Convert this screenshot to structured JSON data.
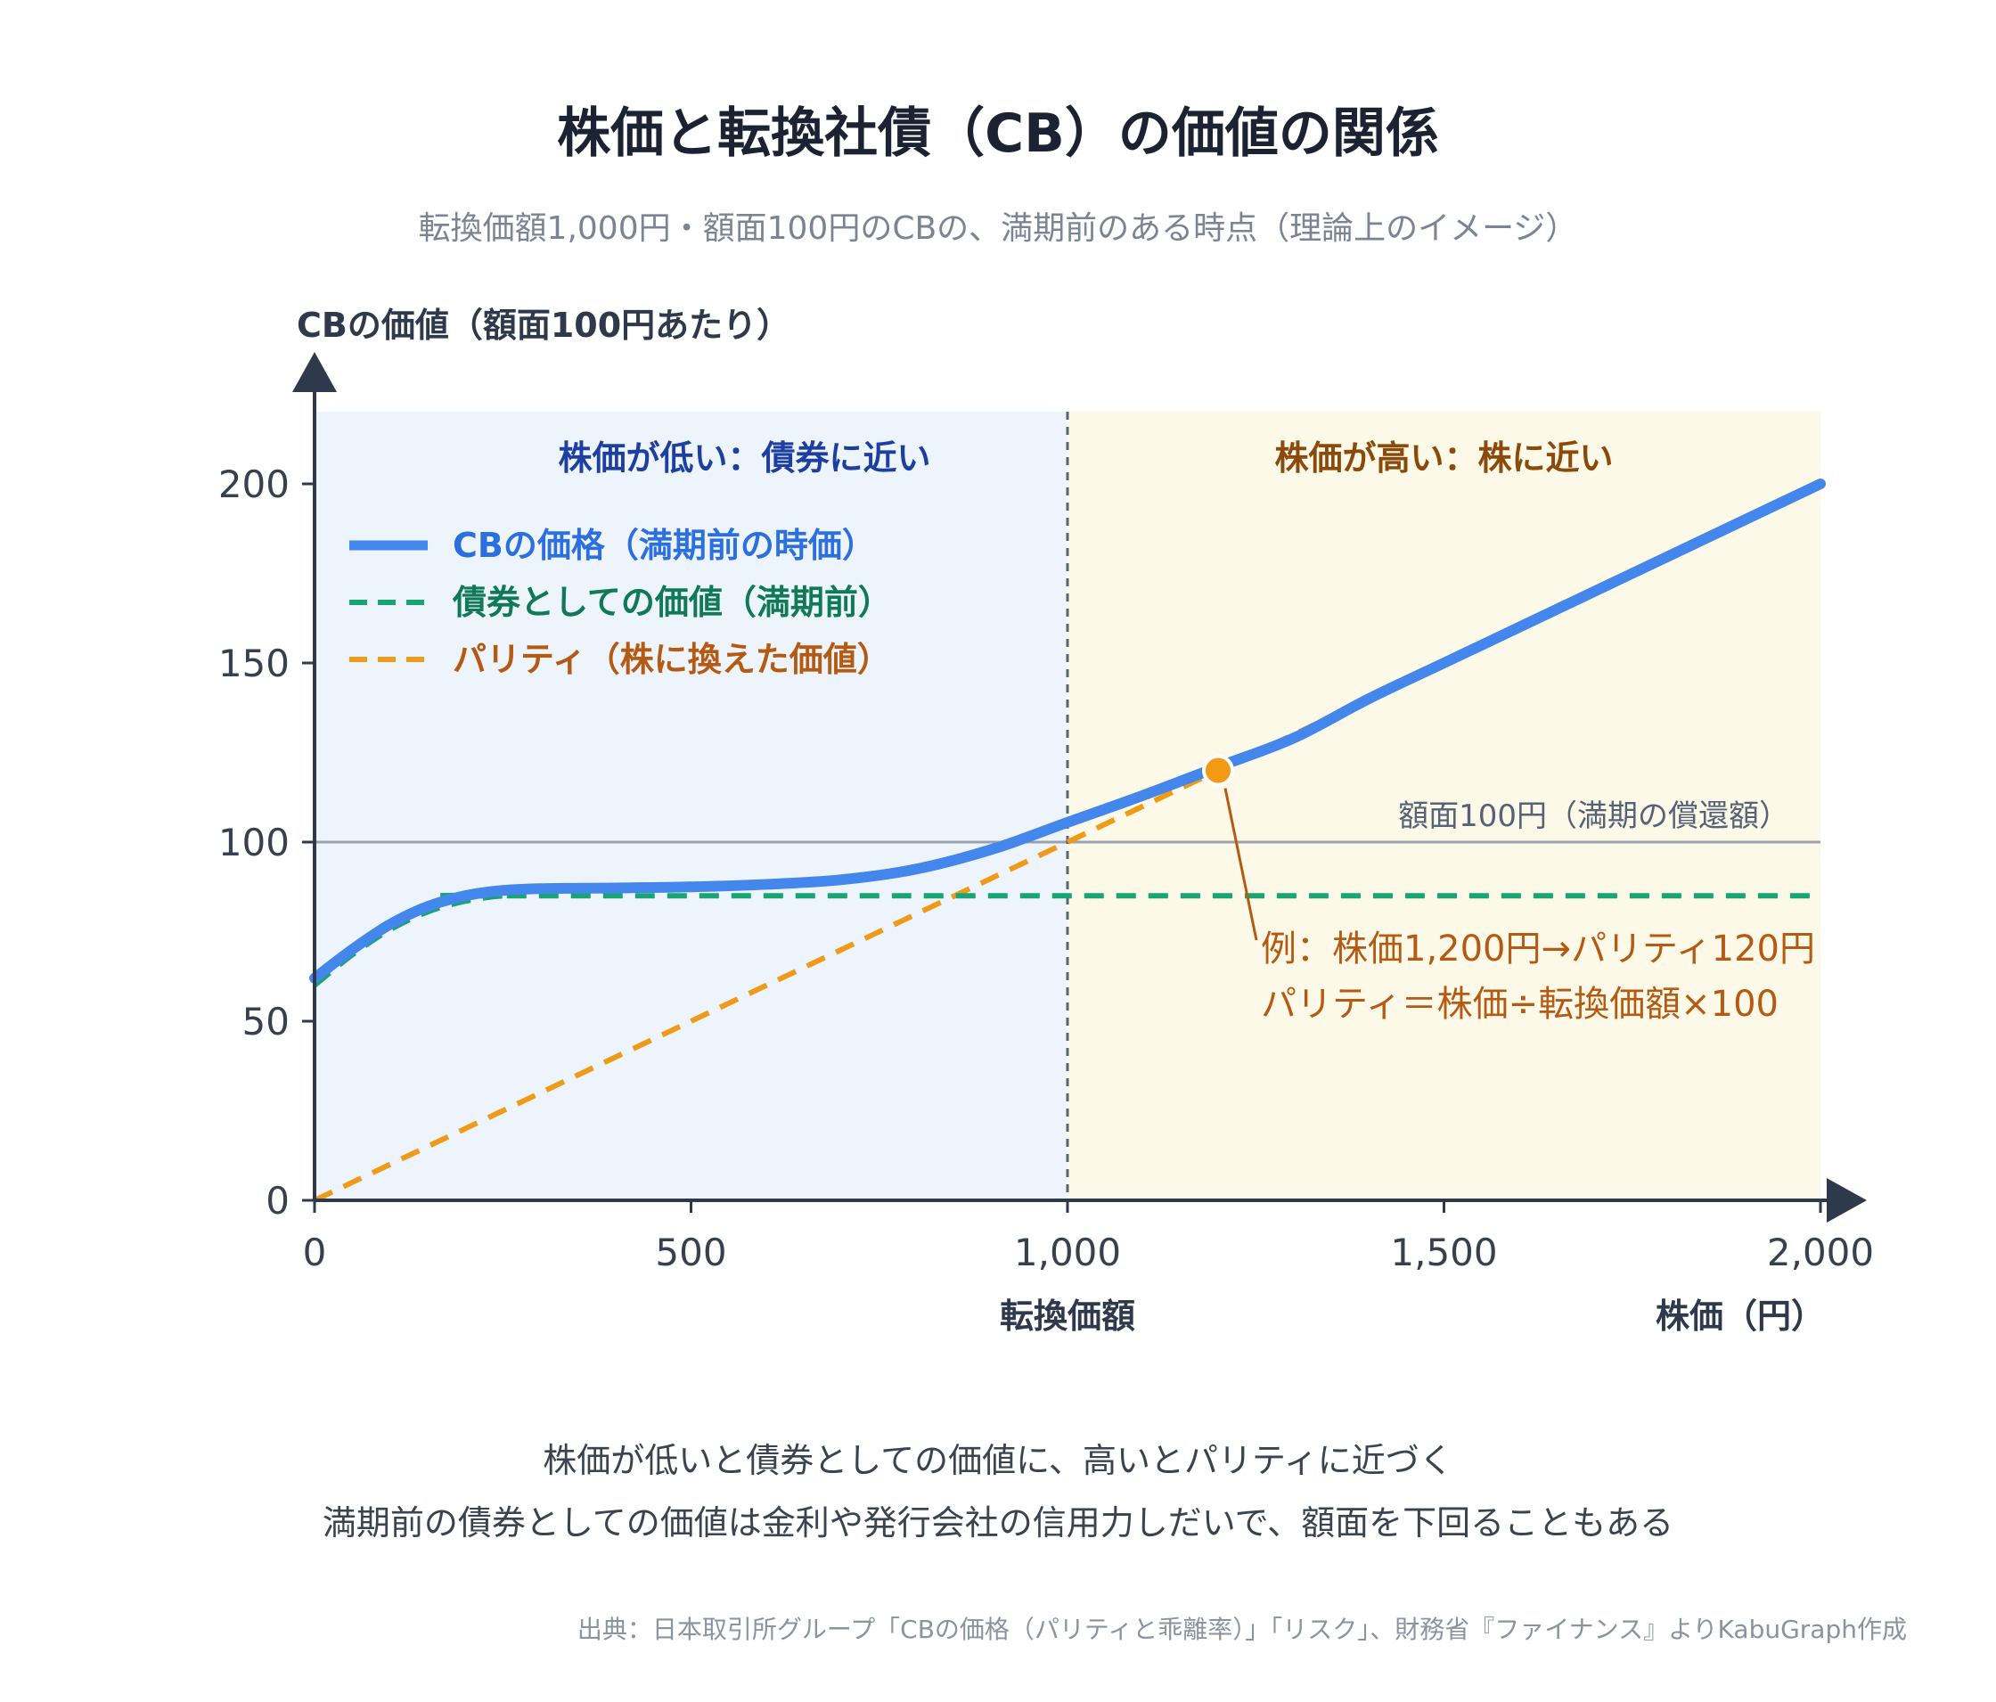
{
  "title": "株価と転換社債（CB）の価値の関係",
  "subtitle": "転換価額1,000円・額面100円のCBの、満期前のある時点（理論上のイメージ）",
  "chart_data": {
    "type": "line",
    "y_axis_title": "CBの価値（額面100円あたり）",
    "x_axis_title": "株価（円）",
    "x_ticks": [
      0,
      500,
      1000,
      1500,
      2000
    ],
    "x_tick_labels": [
      "0",
      "500",
      "1,000",
      "1,500",
      "2,000"
    ],
    "y_ticks": [
      0,
      50,
      100,
      150,
      200
    ],
    "y_tick_labels": [
      "0",
      "50",
      "100",
      "150",
      "200"
    ],
    "xlim": [
      0,
      2000
    ],
    "ylim": [
      0,
      200
    ],
    "conversion_price": 1000,
    "conversion_price_label": "転換価額",
    "face_value": 100,
    "face_value_label": "額面100円（満期の償還額）",
    "zones": [
      {
        "name": "株価が低い：債券に近い",
        "x_range": [
          0,
          1000
        ],
        "color": "#eef4fc",
        "text_color": "#1d3fa0"
      },
      {
        "name": "株価が高い：株に近い",
        "x_range": [
          1000,
          2000
        ],
        "color": "#fdf9e8",
        "text_color": "#8a4a0c"
      }
    ],
    "series": [
      {
        "name": "CBの価格（満期前の時価）",
        "color": "#4386ec",
        "style": "solid",
        "x": [
          0,
          50,
          100,
          150,
          200,
          250,
          300,
          400,
          500,
          600,
          700,
          800,
          900,
          1000,
          1100,
          1200,
          1300,
          1400,
          1500,
          1600,
          1700,
          1800,
          1900,
          2000
        ],
        "y": [
          62,
          70,
          77,
          82,
          85,
          86.5,
          87,
          87.2,
          87.5,
          88.2,
          89.5,
          92.5,
          98,
          105.5,
          113,
          121,
          129,
          140,
          150,
          160,
          170,
          180,
          190,
          200
        ]
      },
      {
        "name": "債券としての価値（満期前）",
        "color": "#17a673",
        "style": "dashed",
        "x": [
          0,
          50,
          100,
          150,
          200,
          250,
          300,
          2000
        ],
        "y": [
          60,
          68.5,
          75.5,
          80.5,
          83.5,
          85,
          85,
          85
        ]
      },
      {
        "name": "パリティ（株に換えた価値）",
        "color": "#ef9b1a",
        "style": "dashed",
        "x": [
          0,
          2000
        ],
        "y": [
          0,
          200
        ]
      }
    ],
    "example_point": {
      "x": 1200,
      "y": 120,
      "color": "#f29a12"
    },
    "annotation": [
      "例：株価1,200円→パリティ120円",
      "パリティ＝株価÷転換価額×100"
    ]
  },
  "caption": [
    "株価が低いと債券としての価値に、高いとパリティに近づく",
    "満期前の債券としての価値は金利や発行会社の信用力しだいで、額面を下回ることもある"
  ],
  "source": "出典：日本取引所グループ「CBの価格（パリティと乖離率）」「リスク」、財務省『ファイナンス』よりKabuGraph作成",
  "colors": {
    "axis": "#2e3a4c",
    "grid_face": "#9aa3ad",
    "divider": "#5a6578"
  }
}
